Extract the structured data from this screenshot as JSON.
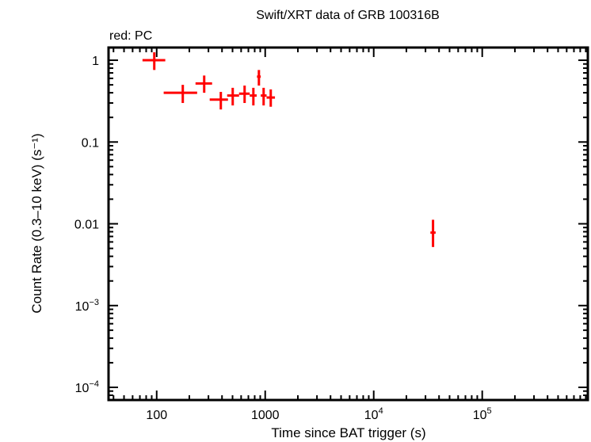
{
  "chart_data": {
    "type": "scatter",
    "title": "Swift/XRT data of GRB 100316B",
    "subtitle": "red: PC",
    "xlabel": "Time since BAT trigger (s)",
    "ylabel": "Count Rate (0.3–10 keV) (s⁻¹)",
    "xscale": "log",
    "yscale": "log",
    "xlim": [
      36,
      940000
    ],
    "ylim": [
      7e-05,
      1.43
    ],
    "grid": false,
    "legend": "top-left text: red: PC",
    "x_ticks": [
      {
        "value": 100,
        "label": "100"
      },
      {
        "value": 1000,
        "label": "1000"
      },
      {
        "value": 10000,
        "label": "10",
        "sup": "4"
      },
      {
        "value": 100000,
        "label": "10",
        "sup": "5"
      }
    ],
    "y_ticks": [
      {
        "value": 1,
        "label": "1"
      },
      {
        "value": 0.1,
        "label": "0.1"
      },
      {
        "value": 0.01,
        "label": "0.01"
      },
      {
        "value": 0.001,
        "label": "10",
        "sup": "−3"
      },
      {
        "value": 0.0001,
        "label": "10",
        "sup": "−4"
      }
    ],
    "series": [
      {
        "name": "PC",
        "color": "#ff0000",
        "points": [
          {
            "x": 95,
            "xlo": 74,
            "xhi": 120,
            "y": 1.0,
            "ylo": 0.76,
            "yhi": 1.25
          },
          {
            "x": 174,
            "xlo": 116,
            "xhi": 236,
            "y": 0.4,
            "ylo": 0.3,
            "yhi": 0.5
          },
          {
            "x": 274,
            "xlo": 228,
            "xhi": 324,
            "y": 0.52,
            "ylo": 0.4,
            "yhi": 0.65
          },
          {
            "x": 390,
            "xlo": 308,
            "xhi": 454,
            "y": 0.33,
            "ylo": 0.25,
            "yhi": 0.41
          },
          {
            "x": 502,
            "xlo": 446,
            "xhi": 574,
            "y": 0.37,
            "ylo": 0.28,
            "yhi": 0.46
          },
          {
            "x": 646,
            "xlo": 574,
            "xhi": 720,
            "y": 0.39,
            "ylo": 0.3,
            "yhi": 0.49
          },
          {
            "x": 778,
            "xlo": 720,
            "xhi": 835,
            "y": 0.37,
            "ylo": 0.28,
            "yhi": 0.46
          },
          {
            "x": 875,
            "xlo": 840,
            "xhi": 910,
            "y": 0.63,
            "ylo": 0.49,
            "yhi": 0.76
          },
          {
            "x": 967,
            "xlo": 910,
            "xhi": 1030,
            "y": 0.37,
            "ylo": 0.28,
            "yhi": 0.46
          },
          {
            "x": 1125,
            "xlo": 1030,
            "xhi": 1230,
            "y": 0.35,
            "ylo": 0.27,
            "yhi": 0.44
          },
          {
            "x": 35200,
            "xlo": 33300,
            "xhi": 37200,
            "y": 0.0078,
            "ylo": 0.0052,
            "yhi": 0.0112
          }
        ]
      }
    ]
  },
  "colors": {
    "data": "#ff0000",
    "axes": "#000000",
    "background": "#ffffff"
  }
}
